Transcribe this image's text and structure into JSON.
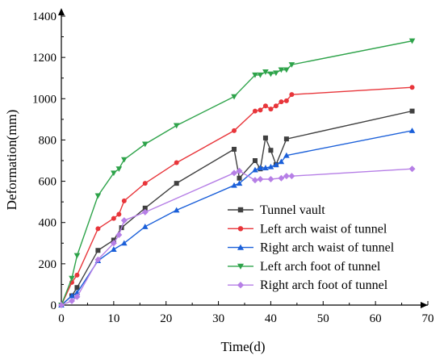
{
  "chart_data": {
    "type": "line",
    "title": "",
    "xlabel": "Time(d)",
    "ylabel": "Deformation(mm)",
    "xlim": [
      0,
      70
    ],
    "ylim": [
      0,
      1400
    ],
    "xticks": [
      0,
      10,
      20,
      30,
      40,
      50,
      60,
      70
    ],
    "yticks": [
      0,
      200,
      400,
      600,
      800,
      1000,
      1200,
      1400
    ],
    "grid": false,
    "legend_position": "bottom-right",
    "series": [
      {
        "name": "Tunnel vault",
        "color": "#404040",
        "marker": "square",
        "points": [
          [
            0,
            0
          ],
          [
            2,
            45
          ],
          [
            3,
            85
          ],
          [
            7,
            265
          ],
          [
            10,
            315
          ],
          [
            11.5,
            375
          ],
          [
            16,
            470
          ],
          [
            22,
            590
          ],
          [
            33,
            755
          ],
          [
            34,
            615
          ],
          [
            37,
            700
          ],
          [
            38,
            660
          ],
          [
            39,
            810
          ],
          [
            40,
            750
          ],
          [
            41,
            680
          ],
          [
            43,
            805
          ],
          [
            67,
            940
          ]
        ]
      },
      {
        "name": "Left arch waist of tunnel",
        "color": "#e8353a",
        "marker": "circle",
        "points": [
          [
            0,
            0
          ],
          [
            2,
            110
          ],
          [
            3,
            145
          ],
          [
            7,
            370
          ],
          [
            10,
            420
          ],
          [
            11,
            440
          ],
          [
            12,
            505
          ],
          [
            16,
            590
          ],
          [
            22,
            690
          ],
          [
            33,
            845
          ],
          [
            37,
            940
          ],
          [
            38,
            945
          ],
          [
            39,
            965
          ],
          [
            40,
            950
          ],
          [
            41,
            965
          ],
          [
            42,
            985
          ],
          [
            43,
            990
          ],
          [
            44,
            1020
          ],
          [
            67,
            1055
          ]
        ]
      },
      {
        "name": "Right arch waist of tunnel",
        "color": "#1a5fd9",
        "marker": "triangle-up",
        "points": [
          [
            0,
            0
          ],
          [
            2,
            45
          ],
          [
            3,
            60
          ],
          [
            7,
            215
          ],
          [
            10,
            270
          ],
          [
            12,
            300
          ],
          [
            16,
            380
          ],
          [
            22,
            460
          ],
          [
            33,
            580
          ],
          [
            34,
            590
          ],
          [
            37,
            655
          ],
          [
            38,
            665
          ],
          [
            39,
            665
          ],
          [
            40,
            670
          ],
          [
            41,
            680
          ],
          [
            42,
            695
          ],
          [
            43,
            725
          ],
          [
            67,
            845
          ]
        ]
      },
      {
        "name": "Left arch foot of tunnel",
        "color": "#2ea34a",
        "marker": "triangle-down",
        "points": [
          [
            0,
            0
          ],
          [
            2,
            130
          ],
          [
            3,
            240
          ],
          [
            7,
            530
          ],
          [
            10,
            640
          ],
          [
            11,
            660
          ],
          [
            12,
            705
          ],
          [
            16,
            780
          ],
          [
            22,
            870
          ],
          [
            33,
            1010
          ],
          [
            37,
            1115
          ],
          [
            38,
            1115
          ],
          [
            39,
            1130
          ],
          [
            40,
            1120
          ],
          [
            41,
            1125
          ],
          [
            42,
            1140
          ],
          [
            43,
            1140
          ],
          [
            44,
            1165
          ],
          [
            67,
            1280
          ]
        ]
      },
      {
        "name": "Right arch foot of tunnel",
        "color": "#b67fe6",
        "marker": "diamond",
        "points": [
          [
            0,
            0
          ],
          [
            2,
            20
          ],
          [
            3,
            40
          ],
          [
            7,
            220
          ],
          [
            10,
            300
          ],
          [
            11,
            340
          ],
          [
            12,
            410
          ],
          [
            16,
            450
          ],
          [
            33,
            640
          ],
          [
            34,
            650
          ],
          [
            37,
            605
          ],
          [
            38,
            610
          ],
          [
            40,
            610
          ],
          [
            42,
            615
          ],
          [
            43,
            625
          ],
          [
            44,
            625
          ],
          [
            67,
            660
          ]
        ]
      }
    ]
  }
}
